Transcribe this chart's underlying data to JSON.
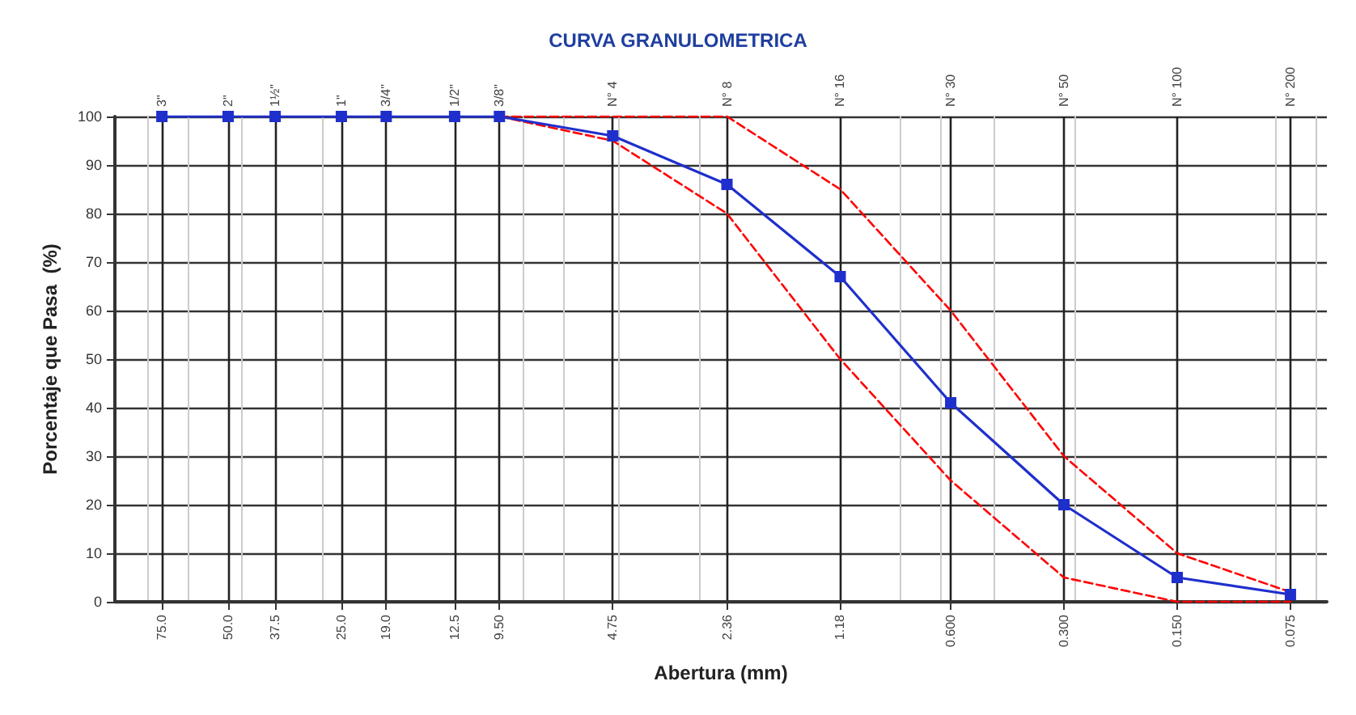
{
  "chart_data": {
    "type": "line",
    "title": "CURVA GRANULOMETRICA",
    "xlabel": "Abertura (mm)",
    "ylabel": "Porcentaje que Pasa  (%)",
    "log": "x",
    "grid": true,
    "xlim": [
      100,
      0.06
    ],
    "ylim": [
      0,
      100
    ],
    "yticks": [
      0,
      10,
      20,
      30,
      40,
      50,
      60,
      70,
      80,
      90,
      100
    ],
    "xticks": [
      {
        "value": 75,
        "label": "75.0"
      },
      {
        "value": 50,
        "label": "50.0"
      },
      {
        "value": 37.5,
        "label": "37.5"
      },
      {
        "value": 25,
        "label": "25.0"
      },
      {
        "value": 19,
        "label": "19.0"
      },
      {
        "value": 12.5,
        "label": "12.5"
      },
      {
        "value": 9.5,
        "label": "9.50"
      },
      4.75,
      2.36,
      1.18,
      {
        "value": 0.6,
        "label": "0.600"
      },
      {
        "value": 0.3,
        "label": "0.300"
      },
      {
        "value": 0.15,
        "label": "0.150"
      },
      0.075
    ],
    "annotations": [
      "3\"",
      "2\"",
      "1½\"",
      "1\"",
      "3/4\"",
      "1/2\"",
      "3/8\"",
      "N° 4",
      "N° 8",
      "N° 16",
      "N° 30",
      "N° 50",
      "N° 100",
      "N° 200"
    ],
    "series": [
      {
        "color": "#ff0000",
        "line_style": "dashed",
        "marker": "none",
        "x": [
          9.5,
          4.75,
          2.36,
          1.18,
          0.6,
          0.3,
          0.15,
          0.075
        ],
        "values": [
          100,
          100,
          100,
          85,
          60,
          30,
          10,
          2
        ]
      },
      {
        "color": "#ff0000",
        "line_style": "dashed",
        "marker": "none",
        "x": [
          9.5,
          4.75,
          2.36,
          1.18,
          0.6,
          0.3,
          0.15,
          0.075
        ],
        "values": [
          100,
          95,
          80,
          50,
          25,
          5,
          0,
          0
        ]
      },
      {
        "color": "#1f2fcc",
        "line_style": "solid",
        "marker": "square",
        "x": [
          75,
          50,
          37.5,
          25,
          19,
          12.5,
          9.5,
          4.75,
          2.36,
          1.18,
          0.6,
          0.3,
          0.15,
          0.075
        ],
        "values": [
          100,
          100,
          100,
          100,
          100,
          100,
          100,
          96,
          86,
          67,
          41,
          20,
          5,
          1.5
        ]
      }
    ]
  }
}
